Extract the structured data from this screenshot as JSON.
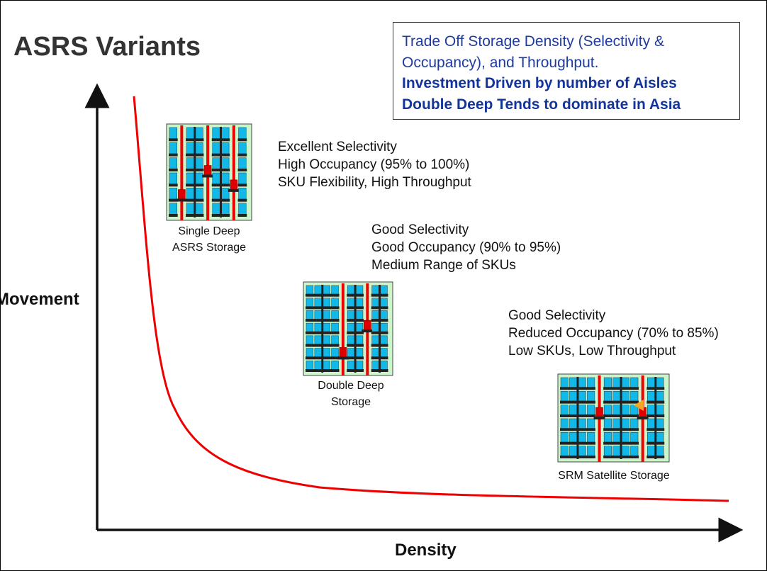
{
  "title": "ASRS Variants",
  "callout": {
    "line1": "Trade Off Storage Density (Selectivity &",
    "line2": "Occupancy), and Throughput.",
    "line3": "Investment Driven by number of Aisles",
    "line4": "Double Deep Tends to dominate in Asia"
  },
  "axes": {
    "y_label": "Movement",
    "x_label": "Density"
  },
  "variants": [
    {
      "caption1": "Single Deep",
      "caption2": "ASRS Storage",
      "desc": [
        "Excellent Selectivity",
        "High Occupancy (95% to 100%)",
        "SKU Flexibility, High Throughput"
      ]
    },
    {
      "caption1": "Double Deep",
      "caption2": "Storage",
      "desc": [
        "Good Selectivity",
        "Good Occupancy (90% to 95%)",
        "Medium Range of SKUs"
      ]
    },
    {
      "caption1": "SRM Satellite Storage",
      "desc": [
        "Good Selectivity",
        "Reduced Occupancy (70% to 85%)",
        "Low SKUs, Low Throughput"
      ]
    }
  ],
  "colors": {
    "curve": "#ee0000",
    "rack_bg": "#ccf5cc",
    "pallet": "#12b8e8",
    "beam": "#222222",
    "aisle": "#ee0000",
    "shuttle": "#dd0000"
  }
}
